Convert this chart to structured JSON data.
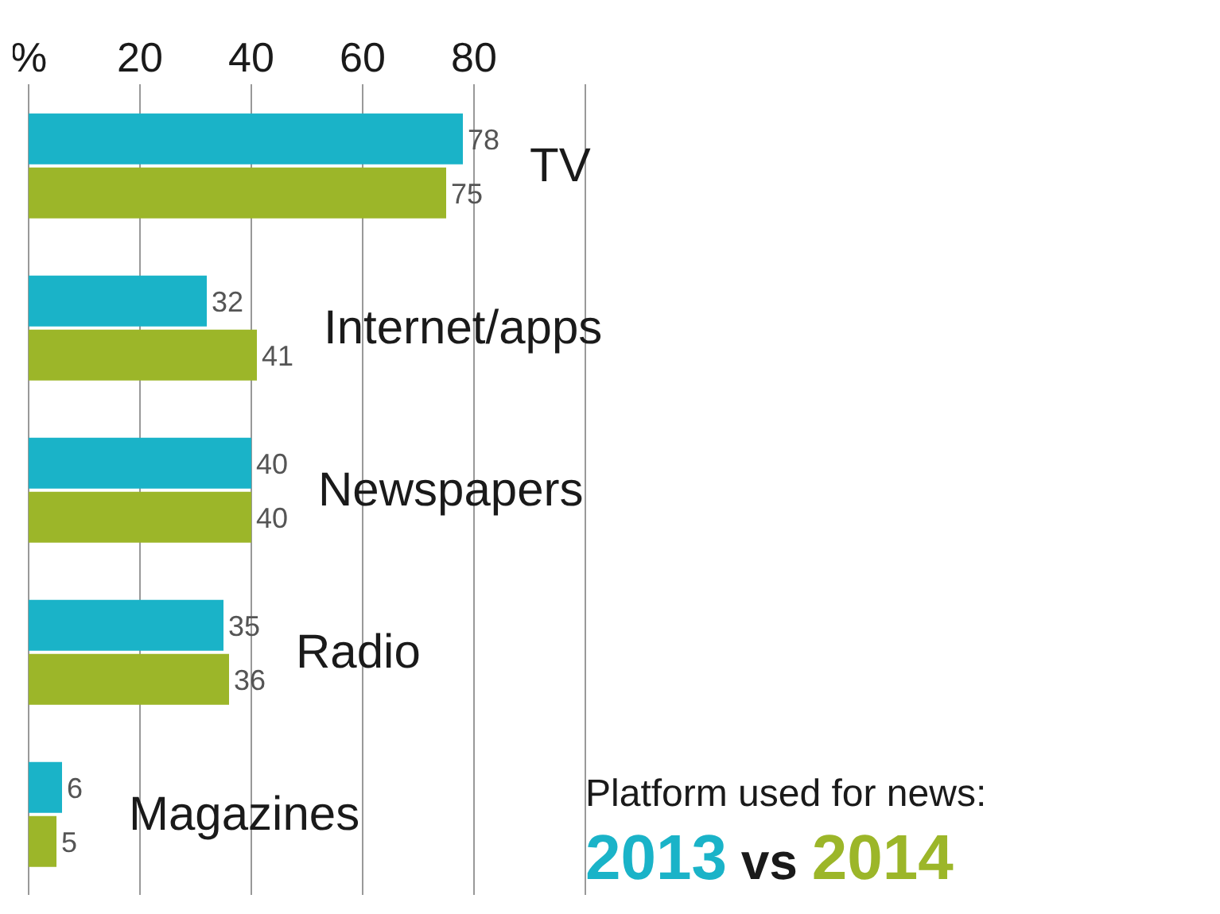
{
  "chart_data": {
    "type": "bar",
    "orientation": "horizontal",
    "categories": [
      "TV",
      "Internet/apps",
      "Newspapers",
      "Radio",
      "Magazines"
    ],
    "series": [
      {
        "name": "2013",
        "color": "#1ab3c8",
        "values": [
          78,
          32,
          40,
          35,
          6
        ]
      },
      {
        "name": "2014",
        "color": "#9cb629",
        "values": [
          75,
          41,
          40,
          36,
          5
        ]
      }
    ],
    "xlim": [
      0,
      100
    ],
    "xticks": [
      {
        "value": 0,
        "label": "%"
      },
      20,
      40,
      60,
      80
    ],
    "grid": "x",
    "data_labels": true,
    "legend": "bottom right",
    "legend_title": "Platform used for news:",
    "annotations": [
      "vs"
    ]
  }
}
